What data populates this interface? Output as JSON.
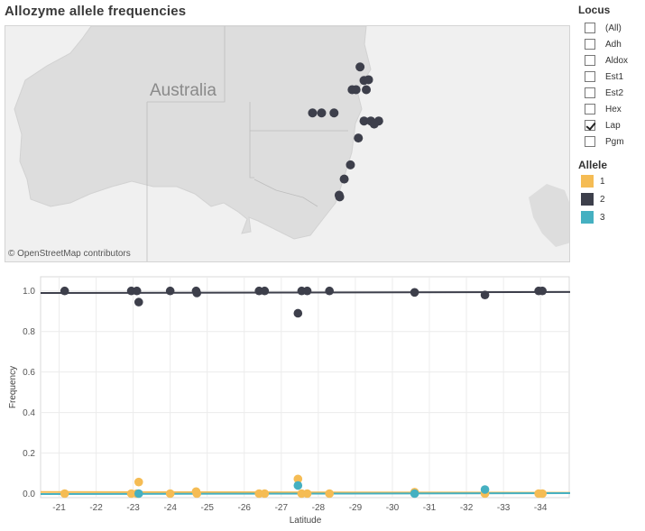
{
  "title": "Allozyme allele frequencies",
  "map": {
    "label": "Australia",
    "credit": "© OpenStreetMap contributors"
  },
  "filters": {
    "locus_title": "Locus",
    "locus_items": [
      {
        "label": "(All)",
        "checked": false
      },
      {
        "label": "Adh",
        "checked": false
      },
      {
        "label": "Aldox",
        "checked": false
      },
      {
        "label": "Est1",
        "checked": false
      },
      {
        "label": "Est2",
        "checked": false
      },
      {
        "label": "Hex",
        "checked": false
      },
      {
        "label": "Lap",
        "checked": true
      },
      {
        "label": "Pgm",
        "checked": false
      }
    ],
    "allele_title": "Allele",
    "allele_items": [
      {
        "label": "1",
        "color": "#f5bc54"
      },
      {
        "label": "2",
        "color": "#3d3f4b"
      },
      {
        "label": "3",
        "color": "#45b0c1"
      }
    ]
  },
  "chart_data": {
    "type": "scatter",
    "xlabel": "Latitude",
    "ylabel": "Frequency",
    "xlim": [
      -20.5,
      -34.8
    ],
    "ylim": [
      -0.02,
      1.07
    ],
    "x_ticks": [
      -21,
      -22,
      -23,
      -24,
      -25,
      -26,
      -27,
      -28,
      -29,
      -30,
      -31,
      -32,
      -33,
      -34
    ],
    "y_ticks": [
      "0.0",
      "0.2",
      "0.4",
      "0.6",
      "0.8",
      "1.0"
    ],
    "grid": true,
    "trend_lines": true,
    "series": [
      {
        "name": "1",
        "color": "#f5bc54",
        "trend": [
          0.008,
          0.004
        ],
        "points": [
          [
            -21.15,
            0.0
          ],
          [
            -22.95,
            0.0
          ],
          [
            -23.1,
            0.0
          ],
          [
            -23.15,
            0.057
          ],
          [
            -24.0,
            0.0
          ],
          [
            -24.7,
            0.01
          ],
          [
            -24.72,
            0.0
          ],
          [
            -26.4,
            0.0
          ],
          [
            -26.55,
            0.0
          ],
          [
            -27.45,
            0.072
          ],
          [
            -27.55,
            0.0
          ],
          [
            -27.7,
            0.0
          ],
          [
            -28.3,
            0.0
          ],
          [
            -30.6,
            0.007
          ],
          [
            -32.5,
            0.0
          ],
          [
            -33.95,
            0.0
          ],
          [
            -34.05,
            0.0
          ]
        ]
      },
      {
        "name": "2",
        "color": "#3d3f4b",
        "trend": [
          0.99,
          0.995
        ],
        "points": [
          [
            -21.15,
            1.0
          ],
          [
            -22.95,
            1.0
          ],
          [
            -23.1,
            1.0
          ],
          [
            -23.15,
            0.945
          ],
          [
            -24.0,
            1.0
          ],
          [
            -24.7,
            1.0
          ],
          [
            -24.72,
            0.99
          ],
          [
            -26.4,
            1.0
          ],
          [
            -26.55,
            1.0
          ],
          [
            -27.45,
            0.89
          ],
          [
            -27.55,
            1.0
          ],
          [
            -27.7,
            1.0
          ],
          [
            -28.3,
            1.0
          ],
          [
            -30.6,
            0.993
          ],
          [
            -32.5,
            0.98
          ],
          [
            -33.95,
            1.0
          ],
          [
            -34.05,
            1.0
          ]
        ]
      },
      {
        "name": "3",
        "color": "#45b0c1",
        "trend": [
          -0.002,
          0.002
        ],
        "points": [
          [
            -23.15,
            0.0
          ],
          [
            -27.45,
            0.04
          ],
          [
            -30.6,
            0.0
          ],
          [
            -32.5,
            0.02
          ]
        ]
      }
    ]
  },
  "map_points": [
    [
      0.627,
      0.172
    ],
    [
      0.634,
      0.229
    ],
    [
      0.642,
      0.226
    ],
    [
      0.613,
      0.268
    ],
    [
      0.62,
      0.268
    ],
    [
      0.638,
      0.268
    ],
    [
      0.543,
      0.366
    ],
    [
      0.559,
      0.366
    ],
    [
      0.581,
      0.366
    ],
    [
      0.634,
      0.4
    ],
    [
      0.646,
      0.4
    ],
    [
      0.66,
      0.4
    ],
    [
      0.652,
      0.413
    ],
    [
      0.624,
      0.472
    ],
    [
      0.61,
      0.585
    ],
    [
      0.599,
      0.645
    ],
    [
      0.59,
      0.713
    ],
    [
      0.591,
      0.72
    ]
  ]
}
